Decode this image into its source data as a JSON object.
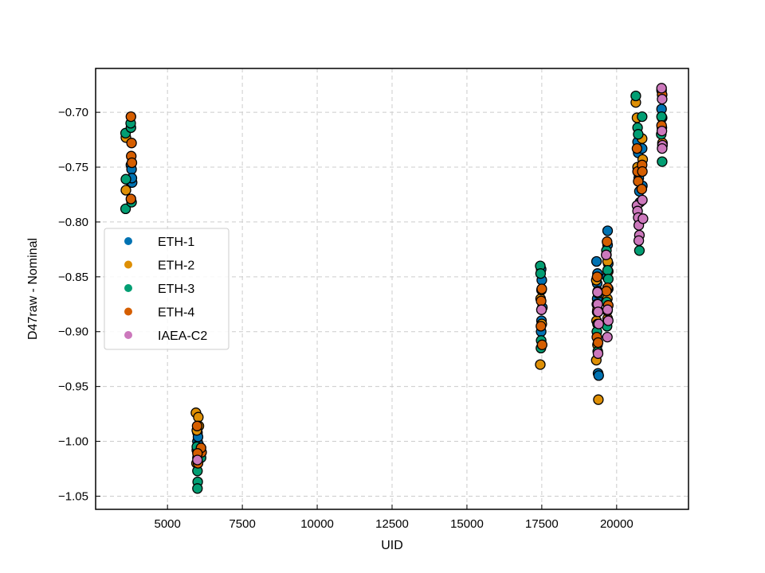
{
  "chart_data": {
    "type": "scatter",
    "xlabel": "UID",
    "ylabel": "D47raw - Nominal",
    "xlim": [
      2600,
      22400
    ],
    "ylim": [
      -1.062,
      -0.66
    ],
    "xticks": [
      5000,
      7500,
      10000,
      12500,
      15000,
      17500,
      20000
    ],
    "xtick_labels": [
      "5000",
      "7500",
      "10000",
      "12500",
      "15000",
      "17500",
      "20000"
    ],
    "yticks": [
      -0.7,
      -0.75,
      -0.8,
      -0.85,
      -0.9,
      -0.95,
      -1.0,
      -1.05
    ],
    "ytick_labels": [
      "−0.70",
      "−0.75",
      "−0.80",
      "−0.85",
      "−0.90",
      "−0.95",
      "−1.00",
      "−1.05"
    ],
    "grid": true,
    "legend_position": "center-left",
    "series": [
      {
        "name": "ETH-1",
        "color": "#0072b2",
        "points": [
          [
            3780,
            -0.748
          ],
          [
            3800,
            -0.752
          ],
          [
            3780,
            -0.764
          ],
          [
            3820,
            -0.764
          ],
          [
            3810,
            -0.76
          ],
          [
            6000,
            -0.992
          ],
          [
            6000,
            -1.0
          ],
          [
            6040,
            -1.003
          ],
          [
            6020,
            -0.996
          ],
          [
            5980,
            -1.008
          ],
          [
            17480,
            -0.843
          ],
          [
            17500,
            -0.853
          ],
          [
            17520,
            -0.878
          ],
          [
            17490,
            -0.89
          ],
          [
            17480,
            -0.9
          ],
          [
            19330,
            -0.836
          ],
          [
            19360,
            -0.847
          ],
          [
            19350,
            -0.856
          ],
          [
            19380,
            -0.938
          ],
          [
            19400,
            -0.94
          ],
          [
            19350,
            -0.87
          ],
          [
            19700,
            -0.808
          ],
          [
            19700,
            -0.821
          ],
          [
            19720,
            -0.838
          ],
          [
            19680,
            -0.85
          ],
          [
            19720,
            -0.861
          ],
          [
            20700,
            -0.727
          ],
          [
            20720,
            -0.737
          ],
          [
            20740,
            -0.76
          ],
          [
            20760,
            -0.772
          ],
          [
            20780,
            -0.782
          ],
          [
            20850,
            -0.733
          ],
          [
            20860,
            -0.767
          ],
          [
            21500,
            -0.697
          ],
          [
            21520,
            -0.705
          ]
        ]
      },
      {
        "name": "ETH-2",
        "color": "#de8f05",
        "points": [
          [
            3610,
            -0.723
          ],
          [
            3610,
            -0.771
          ],
          [
            5950,
            -0.974
          ],
          [
            6030,
            -0.978
          ],
          [
            6050,
            -0.986
          ],
          [
            5980,
            -0.99
          ],
          [
            6000,
            -1.015
          ],
          [
            5970,
            -1.02
          ],
          [
            17450,
            -0.93
          ],
          [
            17490,
            -0.88
          ],
          [
            17460,
            -0.87
          ],
          [
            17500,
            -0.893
          ],
          [
            19320,
            -0.853
          ],
          [
            19340,
            -0.875
          ],
          [
            19330,
            -0.89
          ],
          [
            19360,
            -0.912
          ],
          [
            19320,
            -0.926
          ],
          [
            19390,
            -0.962
          ],
          [
            19660,
            -0.83
          ],
          [
            19700,
            -0.836
          ],
          [
            19720,
            -0.845
          ],
          [
            19690,
            -0.87
          ],
          [
            19700,
            -0.888
          ],
          [
            20640,
            -0.691
          ],
          [
            20680,
            -0.705
          ],
          [
            20700,
            -0.75
          ],
          [
            20720,
            -0.755
          ],
          [
            20850,
            -0.724
          ],
          [
            20870,
            -0.743
          ],
          [
            21500,
            -0.68
          ],
          [
            21510,
            -0.714
          ],
          [
            21530,
            -0.728
          ]
        ]
      },
      {
        "name": "ETH-3",
        "color": "#029e73",
        "points": [
          [
            3600,
            -0.719
          ],
          [
            3610,
            -0.761
          ],
          [
            3600,
            -0.788
          ],
          [
            3780,
            -0.714
          ],
          [
            3800,
            -0.782
          ],
          [
            3770,
            -0.71
          ],
          [
            6000,
            -1.027
          ],
          [
            6010,
            -1.037
          ],
          [
            6000,
            -1.043
          ],
          [
            6120,
            -1.015
          ],
          [
            5980,
            -1.005
          ],
          [
            17450,
            -0.84
          ],
          [
            17460,
            -0.847
          ],
          [
            17480,
            -0.908
          ],
          [
            17470,
            -0.915
          ],
          [
            17490,
            -0.862
          ],
          [
            19350,
            -0.882
          ],
          [
            19360,
            -0.893
          ],
          [
            19340,
            -0.9
          ],
          [
            19370,
            -0.918
          ],
          [
            19380,
            -0.865
          ],
          [
            19660,
            -0.826
          ],
          [
            19680,
            -0.895
          ],
          [
            19700,
            -0.844
          ],
          [
            19720,
            -0.852
          ],
          [
            19670,
            -0.873
          ],
          [
            20640,
            -0.685
          ],
          [
            20700,
            -0.714
          ],
          [
            20720,
            -0.72
          ],
          [
            20760,
            -0.826
          ],
          [
            20850,
            -0.704
          ],
          [
            21500,
            -0.704
          ],
          [
            21520,
            -0.745
          ],
          [
            21490,
            -0.72
          ]
        ]
      },
      {
        "name": "ETH-4",
        "color": "#d55e00",
        "points": [
          [
            3780,
            -0.704
          ],
          [
            3800,
            -0.728
          ],
          [
            3790,
            -0.74
          ],
          [
            3810,
            -0.746
          ],
          [
            3780,
            -0.779
          ],
          [
            5990,
            -0.986
          ],
          [
            6140,
            -1.01
          ],
          [
            6120,
            -1.006
          ],
          [
            6000,
            -1.011
          ],
          [
            6020,
            -1.02
          ],
          [
            17500,
            -0.861
          ],
          [
            17480,
            -0.872
          ],
          [
            17470,
            -0.895
          ],
          [
            17510,
            -0.912
          ],
          [
            19350,
            -0.85
          ],
          [
            19370,
            -0.863
          ],
          [
            19340,
            -0.905
          ],
          [
            19380,
            -0.91
          ],
          [
            19360,
            -0.88
          ],
          [
            19680,
            -0.818
          ],
          [
            19700,
            -0.86
          ],
          [
            19720,
            -0.876
          ],
          [
            19690,
            -0.881
          ],
          [
            19660,
            -0.863
          ],
          [
            20680,
            -0.733
          ],
          [
            20700,
            -0.754
          ],
          [
            20720,
            -0.763
          ],
          [
            20850,
            -0.748
          ],
          [
            20860,
            -0.754
          ],
          [
            20840,
            -0.77
          ],
          [
            21520,
            -0.684
          ],
          [
            21500,
            -0.712
          ]
        ]
      },
      {
        "name": "IAEA-C2",
        "color": "#cc78bc",
        "points": [
          [
            6000,
            -1.017
          ],
          [
            17490,
            -0.88
          ],
          [
            19360,
            -0.864
          ],
          [
            19370,
            -0.875
          ],
          [
            19380,
            -0.882
          ],
          [
            19400,
            -0.893
          ],
          [
            19380,
            -0.92
          ],
          [
            19650,
            -0.83
          ],
          [
            19700,
            -0.88
          ],
          [
            19720,
            -0.89
          ],
          [
            19690,
            -0.905
          ],
          [
            20680,
            -0.785
          ],
          [
            20700,
            -0.79
          ],
          [
            20720,
            -0.796
          ],
          [
            20740,
            -0.803
          ],
          [
            20760,
            -0.812
          ],
          [
            20740,
            -0.817
          ],
          [
            20880,
            -0.797
          ],
          [
            20860,
            -0.78
          ],
          [
            21500,
            -0.678
          ],
          [
            21520,
            -0.688
          ],
          [
            21510,
            -0.717
          ],
          [
            21530,
            -0.73
          ],
          [
            21520,
            -0.733
          ]
        ]
      }
    ]
  }
}
